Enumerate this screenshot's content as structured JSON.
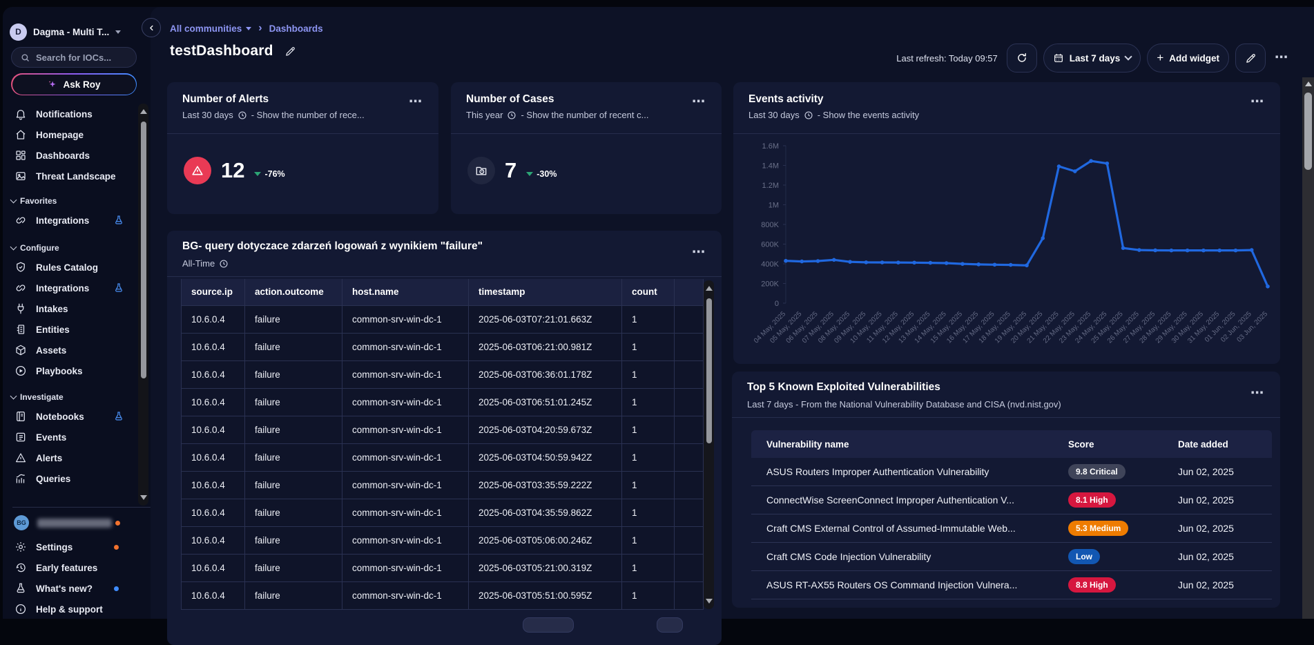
{
  "colors": {
    "accent_link": "#8d95f2",
    "chart_line": "#2068e0",
    "alert_red": "#e93a55",
    "delta_green": "#2ca475",
    "badge_critical": "#3f4459",
    "badge_high": "#d6173f",
    "badge_medium": "#ee7c01",
    "badge_low": "#1257b2",
    "dot_orange": "#f2722e",
    "dot_blue": "#3f8cff"
  },
  "sidebar": {
    "workspace": {
      "initial": "D",
      "name": "Dagma - Multi T..."
    },
    "search_placeholder": "Search for IOCs...",
    "ask_roy_label": "Ask Roy",
    "nav": [
      {
        "label": "Notifications",
        "icon": "bell"
      },
      {
        "label": "Homepage",
        "icon": "home"
      },
      {
        "label": "Dashboards",
        "icon": "grid"
      },
      {
        "label": "Threat Landscape",
        "icon": "landscape"
      }
    ],
    "sections": [
      {
        "label": "Favorites",
        "items": [
          {
            "label": "Integrations",
            "icon": "integration",
            "beta_flask": true
          }
        ]
      },
      {
        "label": "Configure",
        "items": [
          {
            "label": "Rules Catalog",
            "icon": "shield-check"
          },
          {
            "label": "Integrations",
            "icon": "integration",
            "beta_flask": true
          },
          {
            "label": "Intakes",
            "icon": "plug"
          },
          {
            "label": "Entities",
            "icon": "entity"
          },
          {
            "label": "Assets",
            "icon": "cube"
          },
          {
            "label": "Playbooks",
            "icon": "play-circle"
          }
        ]
      },
      {
        "label": "Investigate",
        "items": [
          {
            "label": "Notebooks",
            "icon": "notebook",
            "beta_flask": true
          },
          {
            "label": "Events",
            "icon": "event-list"
          },
          {
            "label": "Alerts",
            "icon": "warning-triangle"
          },
          {
            "label": "Queries",
            "icon": "bar-chart"
          }
        ]
      }
    ],
    "bottom": {
      "user": {
        "avatar_initials": "BG",
        "dot": "orange"
      },
      "items": [
        {
          "label": "Settings",
          "icon": "gear",
          "dot": "orange"
        },
        {
          "label": "Early features",
          "icon": "history"
        },
        {
          "label": "What's new?",
          "icon": "flask",
          "dot": "blue"
        },
        {
          "label": "Help & support",
          "icon": "info-circle"
        }
      ]
    }
  },
  "header": {
    "breadcrumb": {
      "root": "All communities",
      "current": "Dashboards"
    },
    "title": "testDashboard",
    "last_refresh": "Last refresh: Today 09:57",
    "time_range_label": "Last 7 days",
    "add_widget_label": "Add widget"
  },
  "widgets": {
    "alerts": {
      "title": "Number of Alerts",
      "period": "Last 30 days",
      "description": "- Show the number of rece...",
      "value": "12",
      "delta": "-76%",
      "trend": "down"
    },
    "cases": {
      "title": "Number of Cases",
      "period": "This year",
      "description": "- Show the number of recent c...",
      "value": "7",
      "delta": "-30%",
      "trend": "down"
    },
    "events": {
      "title": "Events activity",
      "period": "Last 30 days",
      "description": "- Show the events activity"
    },
    "bg_query": {
      "title": "BG- query dotyczace zdarzeń logowań z wynikiem \"failure\"",
      "period": "All-Time",
      "columns": [
        "source.ip",
        "action.outcome",
        "host.name",
        "timestamp",
        "count"
      ],
      "rows": [
        [
          "10.6.0.4",
          "failure",
          "common-srv-win-dc-1",
          "2025-06-03T07:21:01.663Z",
          "1"
        ],
        [
          "10.6.0.4",
          "failure",
          "common-srv-win-dc-1",
          "2025-06-03T06:21:00.981Z",
          "1"
        ],
        [
          "10.6.0.4",
          "failure",
          "common-srv-win-dc-1",
          "2025-06-03T06:36:01.178Z",
          "1"
        ],
        [
          "10.6.0.4",
          "failure",
          "common-srv-win-dc-1",
          "2025-06-03T06:51:01.245Z",
          "1"
        ],
        [
          "10.6.0.4",
          "failure",
          "common-srv-win-dc-1",
          "2025-06-03T04:20:59.673Z",
          "1"
        ],
        [
          "10.6.0.4",
          "failure",
          "common-srv-win-dc-1",
          "2025-06-03T04:50:59.942Z",
          "1"
        ],
        [
          "10.6.0.4",
          "failure",
          "common-srv-win-dc-1",
          "2025-06-03T03:35:59.222Z",
          "1"
        ],
        [
          "10.6.0.4",
          "failure",
          "common-srv-win-dc-1",
          "2025-06-03T04:35:59.862Z",
          "1"
        ],
        [
          "10.6.0.4",
          "failure",
          "common-srv-win-dc-1",
          "2025-06-03T05:06:00.246Z",
          "1"
        ],
        [
          "10.6.0.4",
          "failure",
          "common-srv-win-dc-1",
          "2025-06-03T05:21:00.319Z",
          "1"
        ],
        [
          "10.6.0.4",
          "failure",
          "common-srv-win-dc-1",
          "2025-06-03T05:51:00.595Z",
          "1"
        ]
      ]
    },
    "top5": {
      "title": "Top 5 Known Exploited Vulnerabilities",
      "subtitle": "Last 7 days - From the National Vulnerability Database and CISA (nvd.nist.gov)",
      "columns": [
        "Vulnerability name",
        "Score",
        "Date added"
      ],
      "rows": [
        {
          "name": "ASUS Routers Improper Authentication Vulnerability",
          "score": "9.8 Critical",
          "severity": "critical",
          "date": "Jun 02, 2025"
        },
        {
          "name": "ConnectWise ScreenConnect Improper Authentication V...",
          "score": "8.1 High",
          "severity": "high",
          "date": "Jun 02, 2025"
        },
        {
          "name": "Craft CMS External Control of Assumed-Immutable Web...",
          "score": "5.3 Medium",
          "severity": "medium",
          "date": "Jun 02, 2025"
        },
        {
          "name": "Craft CMS Code Injection Vulnerability",
          "score": "Low",
          "severity": "low",
          "date": "Jun 02, 2025"
        },
        {
          "name": "ASUS RT-AX55 Routers OS Command Injection Vulnera...",
          "score": "8.8 High",
          "severity": "high",
          "date": "Jun 02, 2025"
        }
      ]
    }
  },
  "chart_data": {
    "type": "line",
    "title": "Events activity",
    "x": [
      "04 May, 2025",
      "05 May, 2025",
      "06 May, 2025",
      "07 May, 2025",
      "08 May, 2025",
      "09 May, 2025",
      "10 May, 2025",
      "11 May, 2025",
      "12 May, 2025",
      "13 May, 2025",
      "14 May, 2025",
      "15 May, 2025",
      "16 May, 2025",
      "17 May, 2025",
      "18 May, 2025",
      "19 May, 2025",
      "20 May, 2025",
      "21 May, 2025",
      "22 May, 2025",
      "23 May, 2025",
      "24 May, 2025",
      "25 May, 2025",
      "26 May, 2025",
      "27 May, 2025",
      "28 May, 2025",
      "29 May, 2025",
      "30 May, 2025",
      "31 May, 2025",
      "01 Jun, 2025",
      "02 Jun, 2025",
      "03 Jun, 2025"
    ],
    "series": [
      {
        "name": "events",
        "color": "#2068e0",
        "values": [
          430000,
          424000,
          428000,
          440000,
          420000,
          415000,
          414000,
          413000,
          412000,
          410000,
          407000,
          399000,
          394000,
          391000,
          389000,
          384000,
          660000,
          1390000,
          1340000,
          1445000,
          1420000,
          560000,
          540000,
          537000,
          536000,
          536000,
          536000,
          536000,
          536000,
          540000,
          170000
        ]
      }
    ],
    "ylim": [
      0,
      1600000
    ],
    "ytick_labels": [
      "0",
      "200K",
      "400K",
      "600K",
      "800K",
      "1M",
      "1.2M",
      "1.4M",
      "1.6M"
    ],
    "grid": false,
    "legend": "none",
    "x_label_rotation": -45
  }
}
